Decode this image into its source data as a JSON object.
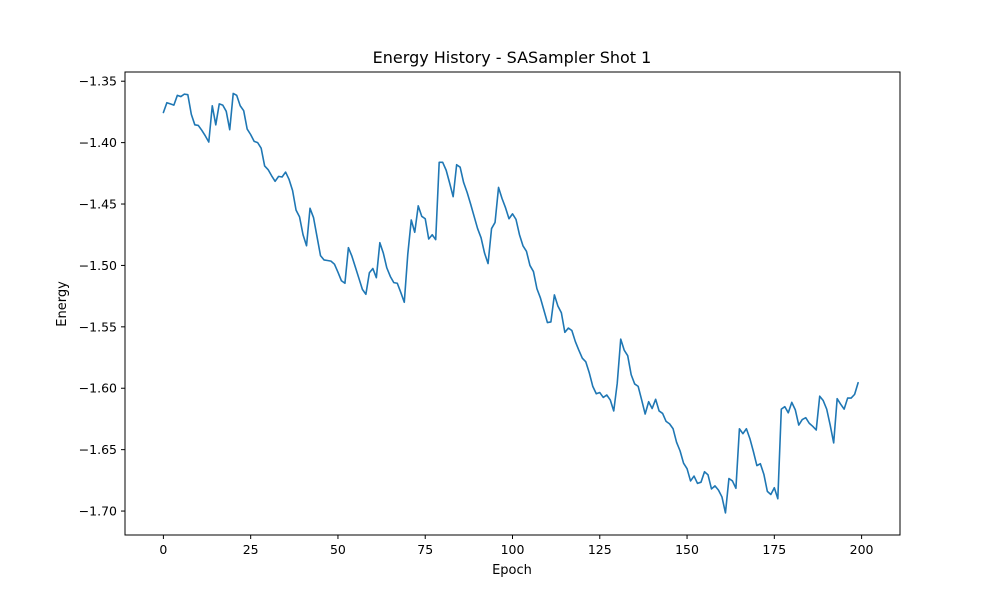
{
  "chart_data": {
    "type": "line",
    "title": "Energy History - SASampler Shot 1",
    "xlabel": "Epoch",
    "ylabel": "Energy",
    "xlim": [
      -11,
      211
    ],
    "ylim": [
      -1.7195,
      -1.3425
    ],
    "xticks": [
      0,
      25,
      50,
      75,
      100,
      125,
      150,
      175,
      200
    ],
    "yticks": [
      -1.7,
      -1.65,
      -1.6,
      -1.55,
      -1.5,
      -1.45,
      -1.4,
      -1.35
    ],
    "xtick_labels": [
      "0",
      "25",
      "50",
      "75",
      "100",
      "125",
      "150",
      "175",
      "200"
    ],
    "ytick_labels": [
      "−1.70",
      "−1.65",
      "−1.60",
      "−1.55",
      "−1.50",
      "−1.45",
      "−1.40",
      "−1.35"
    ],
    "grid": false,
    "line_color": "#1f77b4",
    "series": [
      {
        "values": [
          -1.3755,
          -1.3675,
          -1.3685,
          -1.3695,
          -1.3615,
          -1.3625,
          -1.3605,
          -1.361,
          -1.377,
          -1.3855,
          -1.386,
          -1.39,
          -1.3945,
          -1.3995,
          -1.37,
          -1.3855,
          -1.3685,
          -1.3695,
          -1.3745,
          -1.3895,
          -1.36,
          -1.3615,
          -1.37,
          -1.374,
          -1.389,
          -1.3935,
          -1.399,
          -1.4,
          -1.4045,
          -1.419,
          -1.422,
          -1.427,
          -1.4315,
          -1.4275,
          -1.428,
          -1.424,
          -1.43,
          -1.439,
          -1.455,
          -1.4605,
          -1.475,
          -1.484,
          -1.4535,
          -1.461,
          -1.4765,
          -1.492,
          -1.4955,
          -1.496,
          -1.4965,
          -1.499,
          -1.5055,
          -1.5125,
          -1.5145,
          -1.4855,
          -1.4925,
          -1.5015,
          -1.5105,
          -1.5195,
          -1.5235,
          -1.506,
          -1.5025,
          -1.51,
          -1.4815,
          -1.49,
          -1.502,
          -1.509,
          -1.514,
          -1.5145,
          -1.522,
          -1.53,
          -1.491,
          -1.463,
          -1.473,
          -1.4515,
          -1.46,
          -1.462,
          -1.4785,
          -1.475,
          -1.479,
          -1.416,
          -1.416,
          -1.4225,
          -1.433,
          -1.444,
          -1.418,
          -1.42,
          -1.4325,
          -1.4405,
          -1.45,
          -1.46,
          -1.47,
          -1.4775,
          -1.49,
          -1.4985,
          -1.47,
          -1.465,
          -1.4365,
          -1.4455,
          -1.453,
          -1.462,
          -1.458,
          -1.4625,
          -1.475,
          -1.484,
          -1.4885,
          -1.5,
          -1.505,
          -1.519,
          -1.5265,
          -1.5365,
          -1.5465,
          -1.546,
          -1.524,
          -1.533,
          -1.5385,
          -1.5545,
          -1.551,
          -1.553,
          -1.562,
          -1.569,
          -1.5755,
          -1.5785,
          -1.5875,
          -1.5985,
          -1.6045,
          -1.6035,
          -1.6075,
          -1.6055,
          -1.6095,
          -1.6185,
          -1.596,
          -1.56,
          -1.569,
          -1.5735,
          -1.589,
          -1.5965,
          -1.5985,
          -1.6095,
          -1.621,
          -1.611,
          -1.6165,
          -1.609,
          -1.6185,
          -1.6205,
          -1.627,
          -1.629,
          -1.633,
          -1.644,
          -1.651,
          -1.661,
          -1.6655,
          -1.6755,
          -1.6715,
          -1.6775,
          -1.6765,
          -1.668,
          -1.6705,
          -1.682,
          -1.6795,
          -1.683,
          -1.6885,
          -1.7015,
          -1.6735,
          -1.6755,
          -1.6815,
          -1.633,
          -1.637,
          -1.633,
          -1.641,
          -1.6515,
          -1.663,
          -1.6615,
          -1.67,
          -1.684,
          -1.6865,
          -1.681,
          -1.69,
          -1.617,
          -1.615,
          -1.62,
          -1.6115,
          -1.6175,
          -1.63,
          -1.6255,
          -1.624,
          -1.6285,
          -1.631,
          -1.634,
          -1.6065,
          -1.61,
          -1.617,
          -1.63,
          -1.6445,
          -1.6085,
          -1.613,
          -1.617,
          -1.608,
          -1.608,
          -1.605,
          -1.5955
        ]
      }
    ]
  }
}
